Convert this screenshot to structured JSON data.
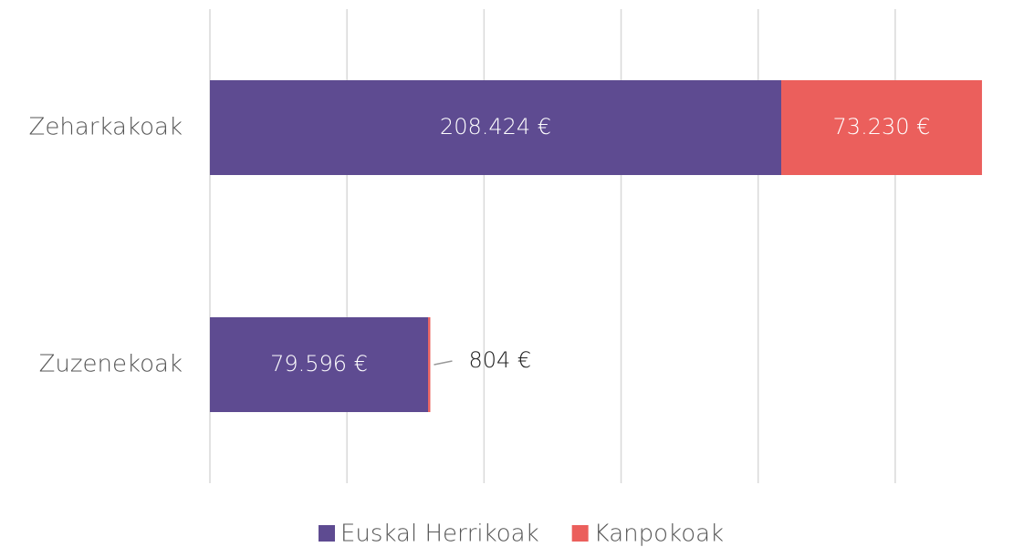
{
  "chart_data": {
    "type": "stacked-barh",
    "categories": [
      "Zeharkakoak",
      "Zuzenekoak"
    ],
    "series": [
      {
        "name": "Euskal Herrikoak",
        "color": "#5e4b91",
        "values": [
          208424,
          79596
        ],
        "value_labels": [
          "208.424 €",
          "79.596 €"
        ]
      },
      {
        "name": "Kanpokoak",
        "color": "#eb5f5c",
        "values": [
          73230,
          804
        ],
        "value_labels": [
          "73.230 €",
          "804 €"
        ]
      }
    ],
    "xlim": [
      0,
      285000
    ],
    "xticks": [
      0,
      50000,
      100000,
      150000,
      200000,
      250000
    ],
    "grid": true,
    "legend": "bottom"
  }
}
